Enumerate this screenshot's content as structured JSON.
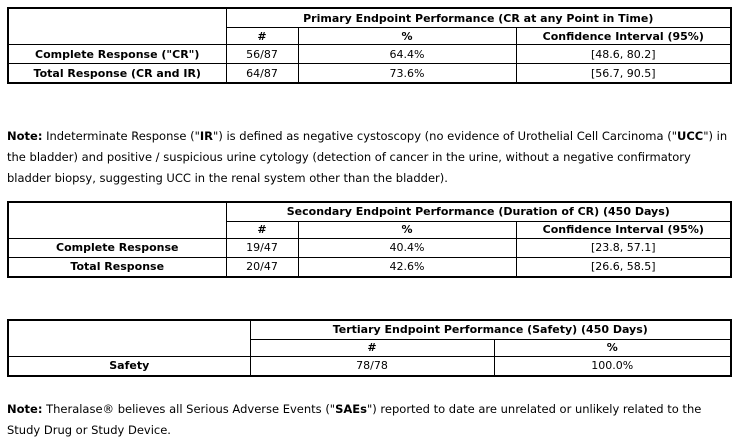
{
  "page": {
    "background_color": "#ffffff",
    "text_color": "#000000",
    "border_color": "#000000"
  },
  "tables": [
    {
      "title": "Primary Endpoint Performance (CR at any Point in Time)",
      "columns": [
        "#",
        "%",
        "Confidence Interval (95%)"
      ],
      "rows": [
        {
          "label": "Complete Response (\"CR\")",
          "values": [
            "56/87",
            "64.4%",
            "[48.6, 80.2]"
          ]
        },
        {
          "label": "Total Response (CR and IR)",
          "values": [
            "64/87",
            "73.6%",
            "[56.7, 90.5]"
          ]
        }
      ]
    },
    {
      "title": "Secondary Endpoint Performance (Duration of CR) (450 Days)",
      "columns": [
        "#",
        "%",
        "Confidence Interval (95%)"
      ],
      "rows": [
        {
          "label": "Complete Response",
          "values": [
            "19/47",
            "40.4%",
            "[23.8, 57.1]"
          ]
        },
        {
          "label": "Total Response",
          "values": [
            "20/47",
            "42.6%",
            "[26.6, 58.5]"
          ]
        }
      ]
    },
    {
      "title": "Tertiary Endpoint Performance (Safety) (450 Days)",
      "columns": [
        "#",
        "%"
      ],
      "rows": [
        {
          "label": "Safety",
          "values": [
            "78/78",
            "100.0%"
          ]
        }
      ]
    }
  ],
  "notes": [
    {
      "label": "Note:",
      "part1": " Indeterminate Response (\"",
      "term1": "IR",
      "part2": "\") is defined as negative cystoscopy (no evidence of Urothelial Cell Carcinoma (\"",
      "term2": "UCC",
      "part3": "\") in the bladder) and positive / suspicious urine cytology (detection of cancer in the urine, without a negative confirmatory bladder biopsy, suggesting UCC in the renal system other than the bladder)."
    },
    {
      "label": "Note:",
      "part1": " Theralase® believes all Serious Adverse Events (\"",
      "term1": "SAEs",
      "part2": "\") reported to date are unrelated or unlikely related to the Study Drug or Study Device."
    }
  ]
}
